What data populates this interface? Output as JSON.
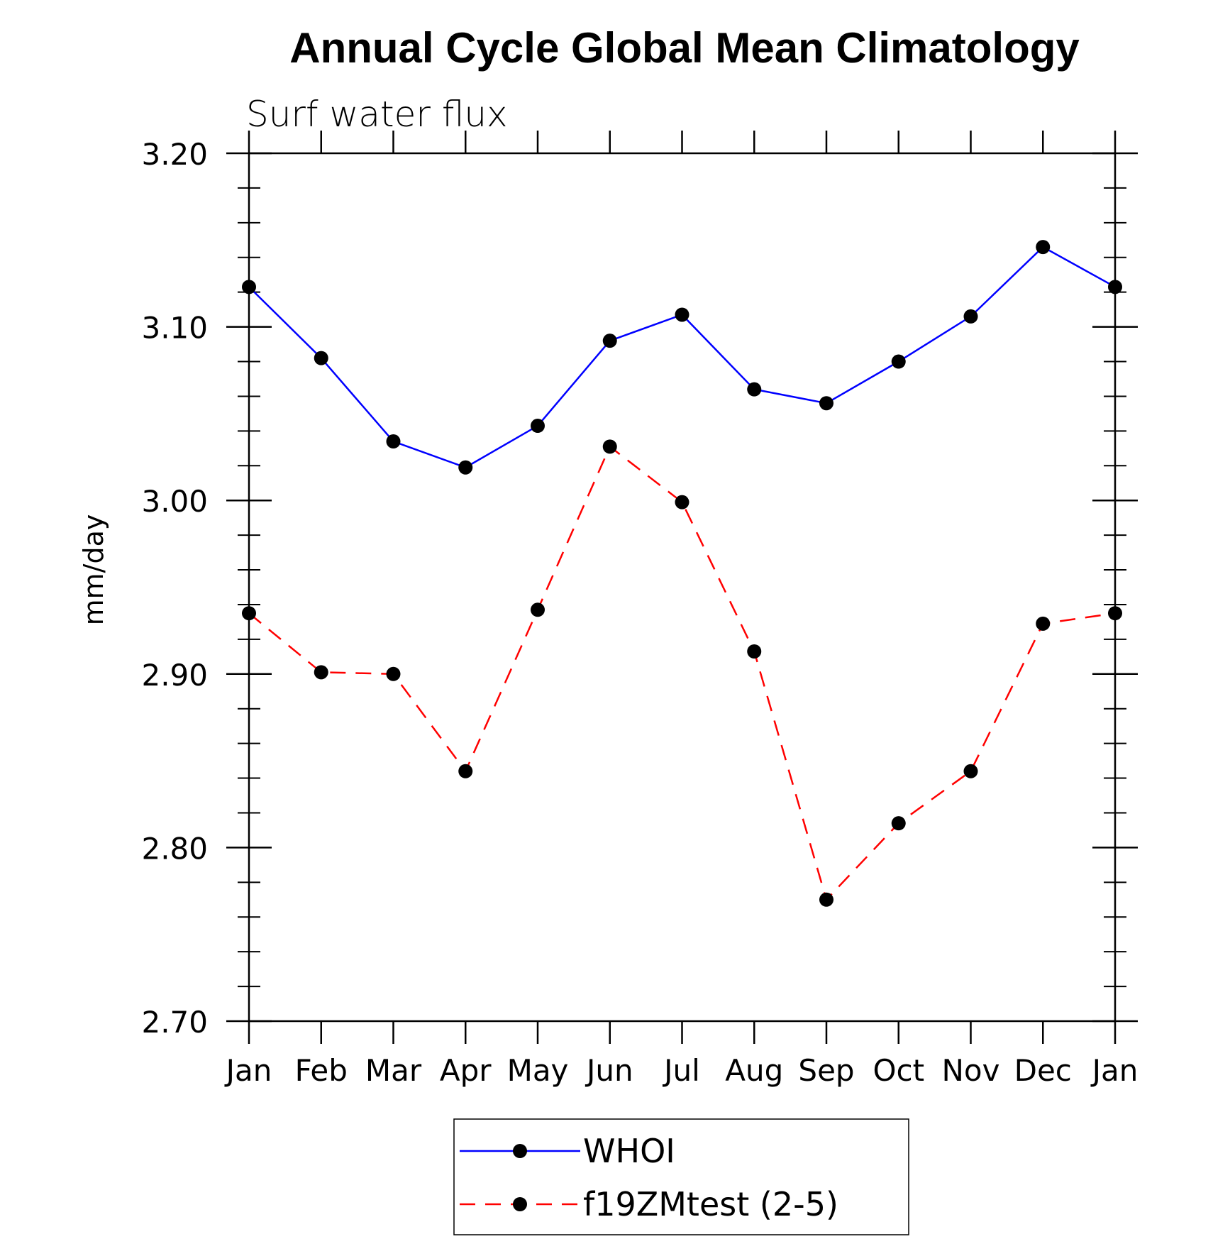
{
  "chart_data": {
    "type": "line",
    "title": "Annual Cycle Global Mean Climatology",
    "subtitle": "Surf water flux",
    "xlabel": "",
    "ylabel": "mm/day",
    "categories": [
      "Jan",
      "Feb",
      "Mar",
      "Apr",
      "May",
      "Jun",
      "Jul",
      "Aug",
      "Sep",
      "Oct",
      "Nov",
      "Dec",
      "Jan"
    ],
    "ylim": [
      2.7,
      3.2
    ],
    "yticks": [
      "2.70",
      "2.80",
      "2.90",
      "3.00",
      "3.10",
      "3.20"
    ],
    "grid": false,
    "legend_position": "bottom-center",
    "series": [
      {
        "name": "WHOI",
        "color": "#0000ff",
        "line_style": "solid",
        "marker": "filled-circle",
        "values": [
          3.123,
          3.082,
          3.034,
          3.019,
          3.043,
          3.092,
          3.107,
          3.064,
          3.056,
          3.08,
          3.106,
          3.146,
          3.123
        ]
      },
      {
        "name": "f19ZMtest (2-5)",
        "color": "#ff0000",
        "line_style": "dashed",
        "marker": "filled-circle",
        "values": [
          2.935,
          2.901,
          2.9,
          2.844,
          2.937,
          3.031,
          2.999,
          2.913,
          2.77,
          2.814,
          2.844,
          2.929,
          2.935
        ]
      }
    ]
  }
}
